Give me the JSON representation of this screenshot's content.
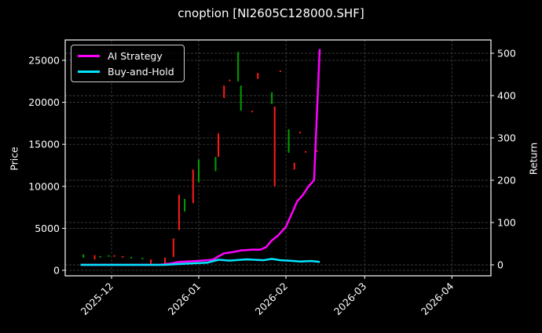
{
  "chart_data": {
    "type": "candlestick+line",
    "title": "cnoption [NI2605C128000.SHF]",
    "xlabel": "",
    "ylabel_left": "Price",
    "ylabel_right": "Return",
    "x_ticks": [
      "2025-12",
      "2026-01",
      "2026-02",
      "2026-03",
      "2026-04"
    ],
    "y_left_ticks": [
      0,
      5000,
      10000,
      15000,
      20000,
      25000
    ],
    "y_right_ticks": [
      0,
      100,
      200,
      300,
      400,
      500
    ],
    "y_left_range": [
      -600,
      27300
    ],
    "y_right_range": [
      -25,
      530
    ],
    "grid": true,
    "legend_position": "upper left",
    "colors": {
      "background": "#000000",
      "ai_strategy": "#ff00ff",
      "buy_and_hold": "#00e5ff",
      "candle_up": "#00a000",
      "candle_down": "#ff1a1a",
      "grid": "#555555",
      "axes": "#ffffff"
    },
    "series": [
      {
        "name": "AI Strategy",
        "axis": "right",
        "x": [
          "2025-11-20",
          "2025-12-01",
          "2025-12-10",
          "2025-12-18",
          "2025-12-22",
          "2025-12-25",
          "2025-12-28",
          "2026-01-02",
          "2026-01-06",
          "2026-01-08",
          "2026-01-10",
          "2026-01-13",
          "2026-01-16",
          "2026-01-20",
          "2026-01-23",
          "2026-01-25",
          "2026-01-27",
          "2026-01-29",
          "2026-02-01",
          "2026-02-03",
          "2026-02-05",
          "2026-02-07",
          "2026-02-09",
          "2026-02-11",
          "2026-02-13"
        ],
        "values": [
          0,
          0,
          0,
          0,
          3,
          7,
          8,
          10,
          12,
          20,
          27,
          30,
          34,
          36,
          36,
          42,
          58,
          68,
          90,
          120,
          150,
          165,
          185,
          200,
          510
        ]
      },
      {
        "name": "Buy-and-Hold",
        "axis": "right",
        "x": [
          "2025-11-20",
          "2025-12-01",
          "2025-12-10",
          "2025-12-20",
          "2025-12-28",
          "2026-01-04",
          "2026-01-08",
          "2026-01-12",
          "2026-01-18",
          "2026-01-24",
          "2026-01-27",
          "2026-01-30",
          "2026-02-02",
          "2026-02-06",
          "2026-02-10",
          "2026-02-13"
        ],
        "values": [
          0,
          0,
          0,
          0,
          3,
          5,
          12,
          10,
          13,
          11,
          14,
          11,
          10,
          8,
          9,
          7
        ]
      }
    ],
    "candles": {
      "axis": "left",
      "note": "approximate OHLC ranges read from pixels",
      "items": [
        {
          "x": "2025-11-21",
          "low": 1500,
          "high": 1900,
          "dir": "up"
        },
        {
          "x": "2025-11-25",
          "low": 1300,
          "high": 1800,
          "dir": "down"
        },
        {
          "x": "2025-12-15",
          "low": 800,
          "high": 1300,
          "dir": "down"
        },
        {
          "x": "2025-12-20",
          "low": 800,
          "high": 1500,
          "dir": "down"
        },
        {
          "x": "2025-12-23",
          "low": 1600,
          "high": 3800,
          "dir": "down"
        },
        {
          "x": "2025-12-25",
          "low": 4800,
          "high": 9000,
          "dir": "down"
        },
        {
          "x": "2025-12-27",
          "low": 7000,
          "high": 8500,
          "dir": "up"
        },
        {
          "x": "2025-12-30",
          "low": 8000,
          "high": 12000,
          "dir": "down"
        },
        {
          "x": "2026-01-01",
          "low": 10500,
          "high": 13200,
          "dir": "up"
        },
        {
          "x": "2026-01-07",
          "low": 11800,
          "high": 13500,
          "dir": "up"
        },
        {
          "x": "2026-01-08",
          "low": 13500,
          "high": 16300,
          "dir": "down"
        },
        {
          "x": "2026-01-10",
          "low": 20500,
          "high": 22000,
          "dir": "down"
        },
        {
          "x": "2026-01-15",
          "low": 22500,
          "high": 26000,
          "dir": "up"
        },
        {
          "x": "2026-01-16",
          "low": 19000,
          "high": 22000,
          "dir": "up"
        },
        {
          "x": "2026-01-22",
          "low": 22800,
          "high": 23500,
          "dir": "down"
        },
        {
          "x": "2026-01-27",
          "low": 19800,
          "high": 21200,
          "dir": "up"
        },
        {
          "x": "2026-01-28",
          "low": 10000,
          "high": 19500,
          "dir": "down"
        },
        {
          "x": "2026-02-02",
          "low": 14000,
          "high": 16800,
          "dir": "up"
        },
        {
          "x": "2026-02-04",
          "low": 12000,
          "high": 12800,
          "dir": "down"
        }
      ]
    }
  },
  "legend": {
    "items": [
      {
        "label": "AI Strategy",
        "color": "#ff00ff"
      },
      {
        "label": "Buy-and-Hold",
        "color": "#00e5ff"
      }
    ]
  }
}
